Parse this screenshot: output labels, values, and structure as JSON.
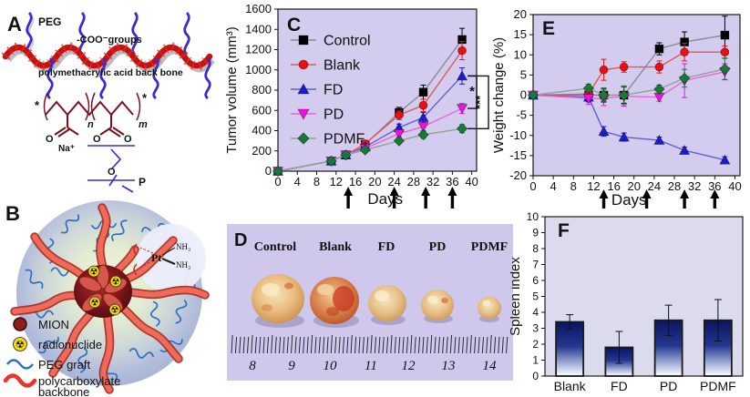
{
  "colors": {
    "plot_bg": "#d3ccee",
    "panel_d_bg": "#cfc8ec",
    "panel_f_bg": "#dcdbee",
    "control": "#000000",
    "blank": "#e81010",
    "fd": "#1c1ccd",
    "pd": "#ee10dd",
    "pdmf": "#157a33",
    "bar_top": "#0b1560",
    "bar_bottom": "#ffffff"
  },
  "panels": {
    "A": {
      "label": "A",
      "peg_label": "PEG",
      "coo_label": "-COO⁻groups",
      "backbone_label": "polymethacrylic acid back bone",
      "formula": {
        "n": "n",
        "m": "m",
        "na": "Na⁺",
        "o_left": "O",
        "o_mid": "O",
        "o_right": "O",
        "o_blue": "O",
        "p": "P",
        "star_left": "*",
        "star_right": "*"
      }
    },
    "B": {
      "label": "B",
      "callout": {
        "pt": "Pt",
        "nh3_top": "NH₃",
        "nh3_bottom": "NH₃"
      },
      "legend": [
        {
          "icon": "mion-icon",
          "label": "MION"
        },
        {
          "icon": "radionuclide-icon",
          "label": "radionuclide"
        },
        {
          "icon": "peg-graft-icon",
          "label": "PEG graft"
        },
        {
          "icon": "polycarboxylate-backbone-icon",
          "label_line1": "polycarboxylate",
          "label_line2": "backbone"
        }
      ]
    },
    "D": {
      "label": "D",
      "groups": [
        "Control",
        "Blank",
        "FD",
        "PD",
        "PDMF"
      ],
      "ruler_numbers": [
        "8",
        "9",
        "10",
        "11",
        "12",
        "13",
        "14"
      ]
    }
  },
  "chart_data": [
    {
      "panel": "C",
      "type": "line",
      "title": "C",
      "xlabel": "Days",
      "ylabel": "Tumor volume (mm³)",
      "xlim": [
        0,
        41
      ],
      "ylim": [
        0,
        1600
      ],
      "xticks": [
        0,
        4,
        8,
        12,
        16,
        20,
        24,
        28,
        32,
        36,
        40
      ],
      "yticks": [
        0,
        200,
        400,
        600,
        800,
        1000,
        1200,
        1400,
        1600
      ],
      "x": [
        0,
        11,
        14,
        18,
        25,
        30,
        38
      ],
      "series": [
        {
          "name": "Control",
          "marker": "square",
          "color": "#000000",
          "line_color": "#8a8a98",
          "values": [
            0,
            100,
            160,
            265,
            580,
            780,
            1300
          ],
          "errors": [
            3,
            12,
            15,
            25,
            50,
            70,
            110
          ]
        },
        {
          "name": "Blank",
          "marker": "circle",
          "color": "#e81010",
          "line_color": "#e05858",
          "values": [
            0,
            100,
            160,
            270,
            555,
            650,
            1190
          ],
          "errors": [
            3,
            12,
            15,
            30,
            45,
            60,
            90
          ]
        },
        {
          "name": "FD",
          "marker": "triangle-up",
          "color": "#1c1ccd",
          "line_color": "#6060d5",
          "values": [
            0,
            100,
            160,
            240,
            430,
            530,
            940
          ],
          "errors": [
            3,
            10,
            15,
            25,
            35,
            50,
            80
          ]
        },
        {
          "name": "PD",
          "marker": "triangle-down",
          "color": "#ee10dd",
          "line_color": "#e668d8",
          "values": [
            0,
            100,
            160,
            225,
            370,
            440,
            620
          ],
          "errors": [
            3,
            10,
            15,
            20,
            30,
            40,
            50
          ]
        },
        {
          "name": "PDMF",
          "marker": "diamond",
          "color": "#157a33",
          "line_color": "#93a096",
          "values": [
            0,
            100,
            160,
            210,
            300,
            360,
            420
          ],
          "errors": [
            3,
            10,
            15,
            20,
            25,
            35,
            40
          ]
        }
      ],
      "treatment_arrow_days": [
        14.5,
        24,
        30.5,
        36
      ],
      "significance": [
        {
          "label": "*",
          "from": "FD",
          "to": "PD"
        },
        {
          "label": "***",
          "from": "FD",
          "to": "PDMF"
        }
      ],
      "legend_position": "upper-left"
    },
    {
      "panel": "E",
      "type": "line",
      "title": "E",
      "xlabel": "Days",
      "ylabel": "Weight change (%)",
      "xlim": [
        0,
        41
      ],
      "ylim": [
        -20,
        20
      ],
      "xticks": [
        0,
        4,
        8,
        12,
        16,
        20,
        24,
        28,
        32,
        36,
        40
      ],
      "yticks": [
        -20,
        -15,
        -10,
        -5,
        0,
        5,
        10,
        15,
        20
      ],
      "x": [
        0,
        11,
        14,
        18,
        25,
        30,
        38
      ],
      "series": [
        {
          "name": "Control",
          "marker": "square",
          "color": "#000000",
          "line_color": "#8a8a98",
          "values": [
            0,
            0,
            0,
            0,
            11.5,
            13.2,
            14.9
          ],
          "errors": [
            0.3,
            1,
            1.5,
            2,
            1.5,
            2.5,
            4.7
          ]
        },
        {
          "name": "Blank",
          "marker": "circle",
          "color": "#e81010",
          "line_color": "#e05858",
          "values": [
            0,
            0.3,
            6.3,
            7,
            7,
            10.7,
            10.7
          ],
          "errors": [
            0.3,
            1.2,
            2.6,
            1.3,
            1.5,
            2.2,
            1.5
          ]
        },
        {
          "name": "FD",
          "marker": "triangle-up",
          "color": "#1c1ccd",
          "line_color": "#6060d5",
          "values": [
            0,
            -0.5,
            -9,
            -10.4,
            -11.2,
            -13.7,
            -16.1
          ],
          "errors": [
            0.3,
            1.2,
            1.2,
            1,
            0.8,
            0.8,
            0.8
          ]
        },
        {
          "name": "PD",
          "marker": "triangle-down",
          "color": "#ee10dd",
          "line_color": "#e668d8",
          "values": [
            0,
            -0.8,
            -0.8,
            -0.3,
            -0.5,
            3.6,
            5.8
          ],
          "errors": [
            0.3,
            1.5,
            1.8,
            2.4,
            1,
            4.2,
            2
          ]
        },
        {
          "name": "PDMF",
          "marker": "diamond",
          "color": "#157a33",
          "line_color": "#93a096",
          "values": [
            0,
            1.7,
            0,
            0,
            1.5,
            4.2,
            6.5
          ],
          "errors": [
            0.3,
            1,
            1.8,
            2.3,
            1,
            2.2,
            2.6
          ]
        }
      ],
      "treatment_arrow_days": [
        14,
        22.5,
        30,
        36
      ]
    },
    {
      "panel": "F",
      "type": "bar",
      "title": "F",
      "xlabel": "",
      "ylabel": "Spleen index",
      "ylim": [
        0,
        10
      ],
      "yticks": [
        0,
        1,
        2,
        3,
        4,
        5,
        6,
        7,
        8,
        9,
        10
      ],
      "categories": [
        "Blank",
        "FD",
        "PD",
        "PDMF"
      ],
      "values": [
        3.4,
        1.8,
        3.5,
        3.5
      ],
      "errors": [
        0.45,
        1.0,
        0.95,
        1.3
      ]
    }
  ]
}
